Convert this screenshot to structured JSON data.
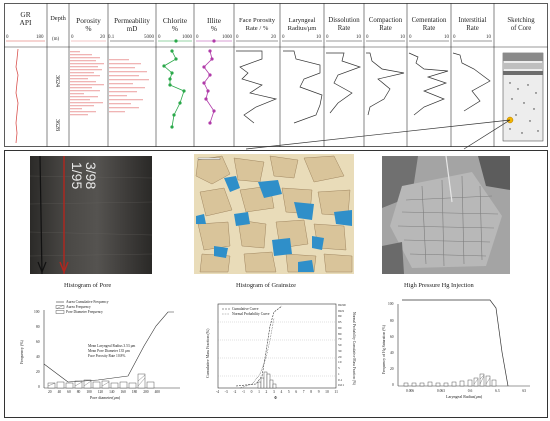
{
  "log_panel": {
    "tracks": [
      {
        "title": "GR\nAPI",
        "min": "0",
        "max": "180"
      },
      {
        "title": "Depth",
        "unit": "(m)"
      },
      {
        "title": "Porosity\n%",
        "min": "0",
        "max": "20"
      },
      {
        "title": "Permeability\nmD",
        "min": "0.1",
        "max": "5000"
      },
      {
        "title": "Chlorite\n%",
        "min": "0",
        "max": "1000"
      },
      {
        "title": "Illite\n%",
        "min": "0",
        "max": "1000"
      },
      {
        "title": "Face Porosity\nRate / %",
        "min": "0",
        "max": "20"
      },
      {
        "title": "Laryngeal\nRadius/μm",
        "min": "0",
        "max": "10"
      },
      {
        "title": "Dissolution\nRate",
        "min": "0",
        "max": "10"
      },
      {
        "title": "Compaction\nRate",
        "min": "0",
        "max": "10"
      },
      {
        "title": "Cementation\nRate",
        "min": "0",
        "max": "10"
      },
      {
        "title": "Interstitial\nRate",
        "min": "0",
        "max": "10"
      },
      {
        "title": "Sketching\nof Core"
      }
    ],
    "depth_labels": [
      "3624",
      "3628"
    ],
    "colors": {
      "gr": "#d9534f",
      "porosity": "#e88a8a",
      "chlorite": "#2aa84a",
      "illite": "#b03aa8",
      "marker": "#f2b400"
    }
  },
  "photos": {
    "core_label": "3/98\n1/95"
  },
  "pore_histogram": {
    "title": "Histogram of Pore",
    "legend": [
      "Aurea Cumulative Frequency",
      "Aurea Frequency",
      "Pore Diameter Frequency"
    ],
    "stats": [
      "Mean Laryngeal Radius 3.53 μm",
      "Mean Pore Diameter 135 μm",
      "Face Porosity Rate 10.8%"
    ],
    "xlabel": "Pore diameter(μm)",
    "ylabel": "Frequency (%)",
    "yticks": [
      "0",
      "20",
      "40",
      "60",
      "80",
      "100"
    ],
    "xticks": [
      "20",
      "40",
      "60",
      "80",
      "100",
      "120",
      "140",
      "160",
      "180",
      "200",
      "400"
    ]
  },
  "grain_histogram": {
    "title": "Histogram of Grainsize",
    "legend": [
      "Cumulative Curve",
      "Normal Probability Curve"
    ],
    "xlabel": "Φ",
    "ylabel": "Cumulative Mass Fraction (%)",
    "ylabel_right": "Normal Probability Cumulative Mass Fraction (%)",
    "xticks": [
      "-4",
      "-3",
      "-2",
      "-1",
      "0",
      "1",
      "2",
      "3",
      "4",
      "5",
      "6",
      "7",
      "8",
      "9",
      "10",
      "11"
    ],
    "yticks_right": [
      "99.99",
      "99.9",
      "99",
      "95",
      "90",
      "80",
      "70",
      "50",
      "30",
      "20",
      "10",
      "5",
      "1",
      "0.1",
      "0.01"
    ]
  },
  "hg_injection": {
    "title": "High Pressure Hg Injection",
    "xlabel": "Laryngeal Radius(μm)",
    "ylabel": "Frequency of Hg Saturation (%)",
    "xticks": [
      "0.006",
      "0.063",
      "0.6",
      "6.3",
      "63"
    ],
    "yticks": [
      "0",
      "20",
      "40",
      "60",
      "80",
      "100"
    ]
  }
}
